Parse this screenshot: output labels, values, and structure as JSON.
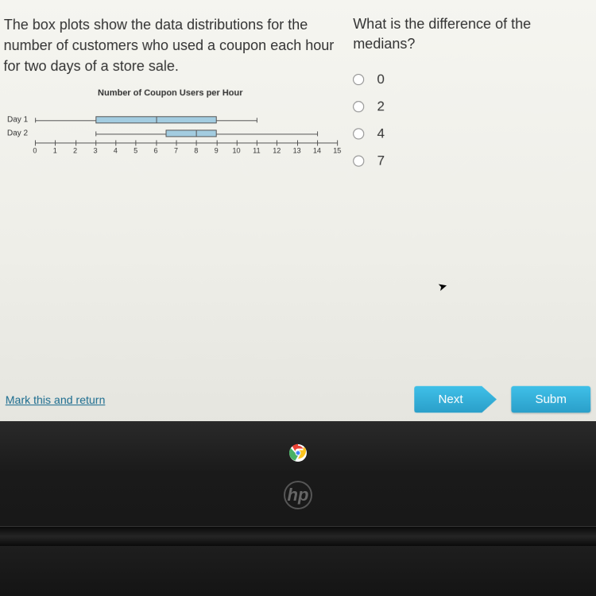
{
  "prompt": "The box plots show the data distributions for the number of customers who used a coupon each hour for two days of a store sale.",
  "question": "What is the difference of the medians?",
  "options": [
    "0",
    "2",
    "4",
    "7"
  ],
  "chart": {
    "title": "Number of Coupon Users per Hour",
    "axis_min": 0,
    "axis_max": 15,
    "ticks": [
      0,
      1,
      2,
      3,
      4,
      5,
      6,
      7,
      8,
      9,
      10,
      11,
      12,
      13,
      14,
      15
    ],
    "series": [
      {
        "label": "Day 1",
        "min": 0,
        "q1": 3,
        "median": 6,
        "q3": 9,
        "max": 11,
        "box_color": "#a3cce0",
        "line_color": "#555555"
      },
      {
        "label": "Day 2",
        "min": 3,
        "q1": 6.5,
        "median": 8,
        "q3": 9,
        "max": 14,
        "box_color": "#a3cce0",
        "line_color": "#555555"
      }
    ]
  },
  "footer": {
    "mark_link": "Mark this and return",
    "next_label": "Next",
    "submit_label": "Subm"
  },
  "laptop": {
    "logo": "hp"
  },
  "colors": {
    "screen_bg": "#f0f0ea",
    "text": "#333333",
    "link": "#1a6b8e",
    "button_top": "#3fc0e8",
    "button_bottom": "#2a9fc9",
    "bezel": "#1a1a1a"
  }
}
